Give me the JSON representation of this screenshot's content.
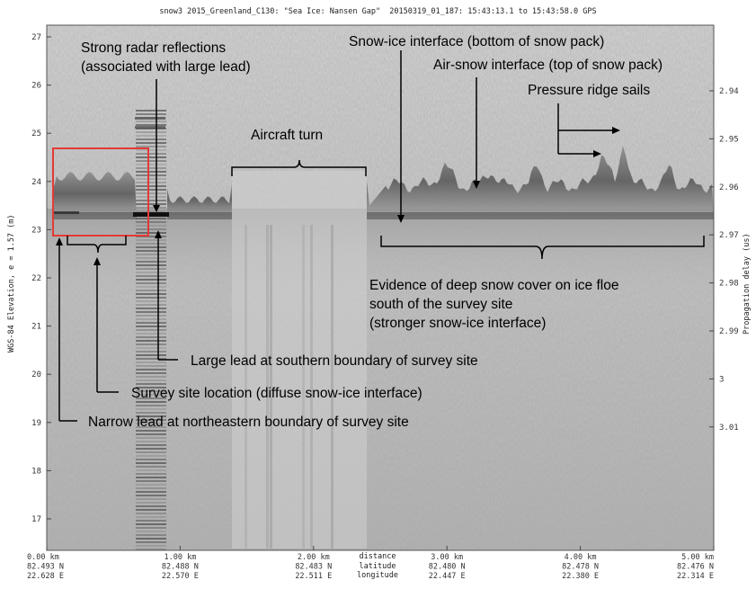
{
  "header": {
    "title": "snow3 2015_Greenland_C130: \"Sea Ice: Nansen Gap\"  20150319_01_187: 15:43:13.1 to 15:43:58.0 GPS"
  },
  "chart_data": {
    "type": "radargram",
    "left_axis": {
      "label": "WGS-84 Elevation, e = 1.57 (m)",
      "ticks": [
        "27",
        "26",
        "25",
        "24",
        "23",
        "22",
        "21",
        "20",
        "19",
        "18",
        "17"
      ],
      "range": [
        16.2,
        27.4
      ]
    },
    "right_axis": {
      "label": "Propagation delay (us)",
      "ticks": [
        "2.94",
        "2.95",
        "2.96",
        "2.97",
        "2.98",
        "2.99",
        "3",
        "3.01"
      ]
    },
    "x_axis": {
      "range_km": [
        0,
        5
      ],
      "row_labels": [
        "distance",
        "latitude",
        "longitude"
      ],
      "ticks": [
        {
          "km": 0,
          "distance": "0.00 km",
          "lat": "82.493 N",
          "lon": "22.628 E"
        },
        {
          "km": 1,
          "distance": "1.00 km",
          "lat": "82.488 N",
          "lon": "22.570 E"
        },
        {
          "km": 2,
          "distance": "2.00 km",
          "lat": "82.483 N",
          "lon": "22.511 E"
        },
        {
          "km": 3,
          "distance": "3.00 km",
          "lat": "82.480 N",
          "lon": "22.447 E"
        },
        {
          "km": 4,
          "distance": "4.00 km",
          "lat": "82.478 N",
          "lon": "22.380 E"
        },
        {
          "km": 5,
          "distance": "5.00 km",
          "lat": "82.476 N",
          "lon": "22.314 E"
        }
      ]
    },
    "annotations": [
      {
        "id": "strong-reflections",
        "text": [
          "Strong radar reflections",
          "(associated with large lead)"
        ]
      },
      {
        "id": "aircraft-turn",
        "text": [
          "Aircraft turn"
        ]
      },
      {
        "id": "snow-ice",
        "text": [
          "Snow-ice interface (bottom of snow pack)"
        ]
      },
      {
        "id": "air-snow",
        "text": [
          "Air-snow interface (top of snow pack)"
        ]
      },
      {
        "id": "pressure-ridge",
        "text": [
          "Pressure ridge sails"
        ]
      },
      {
        "id": "deep-snow",
        "text": [
          "Evidence of deep snow cover on ice floe",
          "south of the survey site",
          "(stronger snow-ice interface)"
        ]
      },
      {
        "id": "large-lead",
        "text": [
          "Large lead at southern boundary of survey site"
        ]
      },
      {
        "id": "survey-site",
        "text": [
          "Survey site location (diffuse snow-ice interface)"
        ]
      },
      {
        "id": "narrow-lead",
        "text": [
          "Narrow lead at northeastern boundary of survey site"
        ]
      }
    ],
    "highlight_box": {
      "label": "",
      "color": "#e53935"
    }
  }
}
